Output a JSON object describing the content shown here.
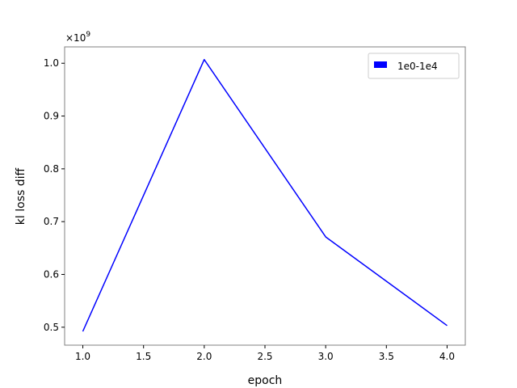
{
  "chart_data": {
    "type": "line",
    "title": "",
    "xlabel": "epoch",
    "ylabel": "kl loss diff",
    "y_offset_label": {
      "base": "×10",
      "exponent": "9"
    },
    "xlim": [
      0.85,
      4.15
    ],
    "ylim": [
      0.466,
      1.031
    ],
    "x_ticks": [
      1.0,
      1.5,
      2.0,
      2.5,
      3.0,
      3.5,
      4.0
    ],
    "x_tick_labels": [
      "1.0",
      "1.5",
      "2.0",
      "2.5",
      "3.0",
      "3.5",
      "4.0"
    ],
    "y_ticks": [
      0.5,
      0.6,
      0.7,
      0.8,
      0.9,
      1.0
    ],
    "y_tick_labels": [
      "0.5",
      "0.6",
      "0.7",
      "0.8",
      "0.9",
      "1.0"
    ],
    "grid": false,
    "legend_position": "top-right",
    "series": [
      {
        "name": "1e0-1e4",
        "color": "#0000ff",
        "x": [
          1.0,
          2.0,
          3.0,
          4.0
        ],
        "y": [
          0.492,
          1.007,
          0.671,
          0.503
        ]
      }
    ]
  }
}
